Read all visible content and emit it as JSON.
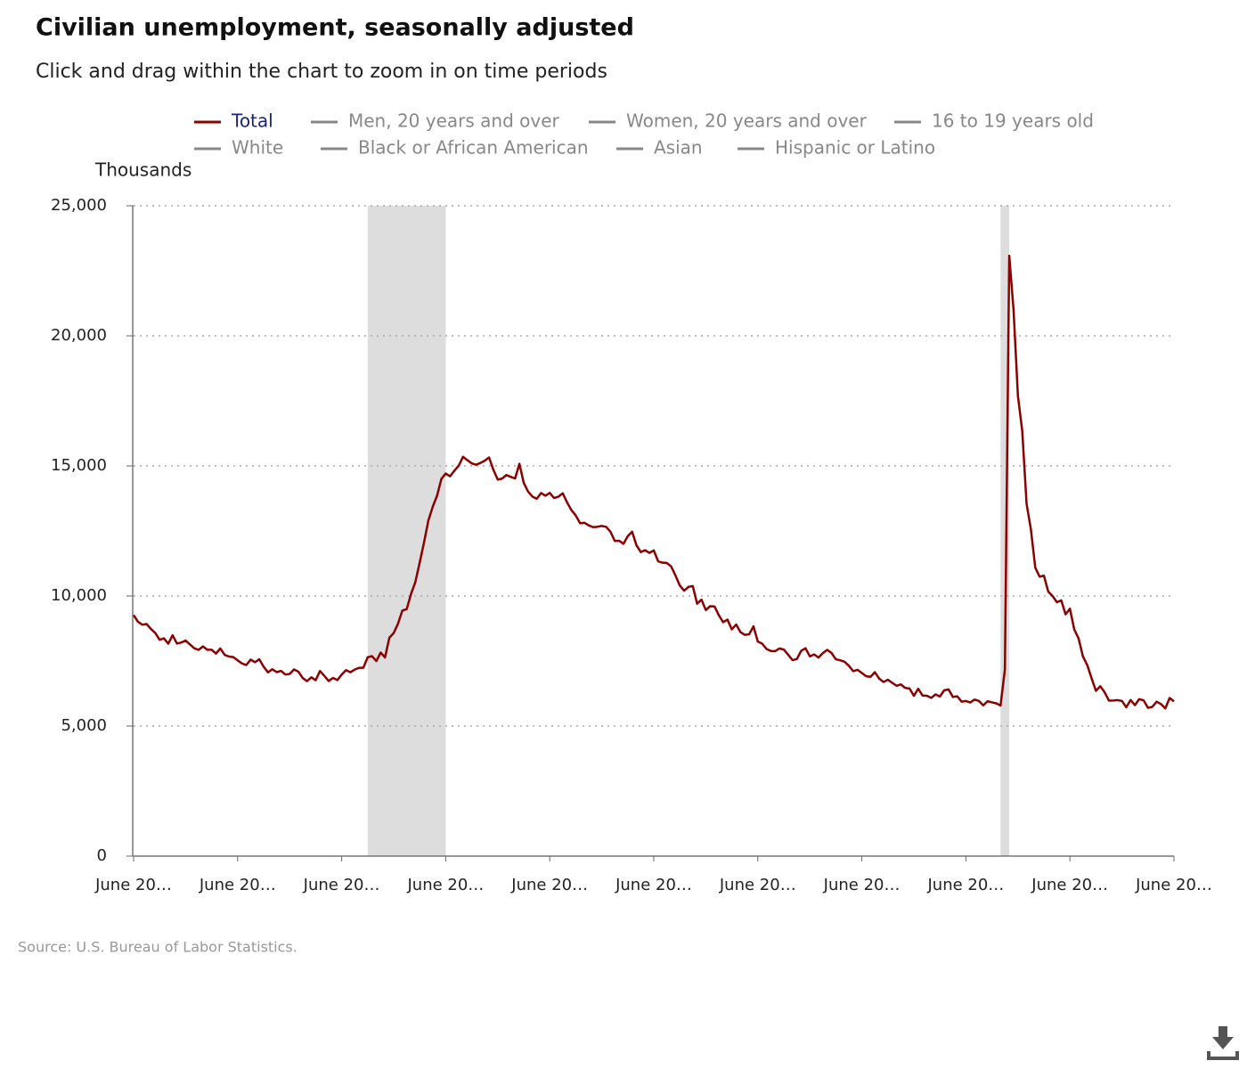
{
  "chart_data": {
    "type": "line",
    "title": "Civilian unemployment, seasonally adjusted",
    "subtitle": "Click and drag within the chart to zoom in on time periods",
    "y_axis_label": "Thousands",
    "source": "Source: U.S. Bureau of Labor Statistics.",
    "xlim": [
      0,
      240
    ],
    "xticks": [
      {
        "value": 0,
        "label": "June 20…"
      },
      {
        "value": 24,
        "label": "June 20…"
      },
      {
        "value": 48,
        "label": "June 20…"
      },
      {
        "value": 72,
        "label": "June 20…"
      },
      {
        "value": 96,
        "label": "June 20…"
      },
      {
        "value": 120,
        "label": "June 20…"
      },
      {
        "value": 144,
        "label": "June 20…"
      },
      {
        "value": 168,
        "label": "June 20…"
      },
      {
        "value": 192,
        "label": "June 20…"
      },
      {
        "value": 216,
        "label": "June 20…"
      },
      {
        "value": 240,
        "label": "June 20…"
      }
    ],
    "ylim": [
      0,
      25000
    ],
    "yticks": [
      0,
      {
        "value": 5000,
        "label": "5,000"
      },
      {
        "value": 10000,
        "label": "10,000"
      },
      {
        "value": 15000,
        "label": "15,000"
      },
      {
        "value": 20000,
        "label": "20,000"
      },
      {
        "value": 25000,
        "label": "25,000"
      }
    ],
    "grid": true,
    "shaded_periods": [
      [
        54,
        72
      ],
      [
        200,
        202
      ]
    ],
    "series": [
      {
        "name": "Total",
        "color": "#8b0000",
        "visible": true,
        "values": [
          9266,
          9011,
          8896,
          8921,
          8732,
          8576,
          8317,
          8370,
          8167,
          8491,
          8170,
          8212,
          8286,
          8136,
          7990,
          7927,
          8061,
          7932,
          7934,
          7784,
          7980,
          7737,
          7672,
          7651,
          7524,
          7406,
          7345,
          7553,
          7453,
          7566,
          7279,
          7064,
          7184,
          7072,
          7120,
          6980,
          7001,
          7175,
          7091,
          6847,
          6727,
          6872,
          6762,
          7116,
          6927,
          6731,
          6850,
          6766,
          6979,
          7149,
          7067,
          7170,
          7237,
          7240,
          7645,
          7685,
          7497,
          7822,
          7637,
          8395,
          8575,
          8937,
          9438,
          9494,
          10074,
          10538,
          11286,
          12058,
          12898,
          13426,
          13853,
          14499,
          14707,
          14601,
          14814,
          15009,
          15352,
          15219,
          15098,
          15046,
          15113,
          15202,
          15325,
          14849,
          14474,
          14512,
          14648,
          14579,
          14516,
          15081,
          14348,
          14013,
          13820,
          13737,
          13957,
          13855,
          13962,
          13763,
          13818,
          13948,
          13594,
          13302,
          13093,
          12797,
          12813,
          12713,
          12646,
          12660,
          12692,
          12656,
          12471,
          12115,
          12124,
          12005,
          12298,
          12471,
          11950,
          11689,
          11760,
          11654,
          11751,
          11335,
          11279,
          11270,
          11136,
          10787,
          10404,
          10202,
          10349,
          10380,
          9702,
          9859,
          9460,
          9608,
          9599,
          9262,
          8990,
          9090,
          8717,
          8903,
          8610,
          8504,
          8526,
          8834,
          8244,
          8167,
          7962,
          7886,
          7878,
          7984,
          7937,
          7742,
          7535,
          7575,
          7892,
          7991,
          7677,
          7752,
          7631,
          7804,
          7929,
          7809,
          7567,
          7528,
          7474,
          7319,
          7110,
          7160,
          7036,
          6913,
          6892,
          7069,
          6822,
          6693,
          6780,
          6661,
          6549,
          6600,
          6465,
          6442,
          6162,
          6434,
          6172,
          6164,
          6081,
          6216,
          6135,
          6375,
          6409,
          6116,
          6145,
          5938,
          5962,
          5906,
          6018,
          5965,
          5796,
          5955,
          5909,
          5874,
          5789,
          7178,
          23078,
          20988,
          17697,
          16346,
          13542,
          12559,
          11094,
          10740,
          10781,
          10167,
          9995,
          9761,
          9832,
          9295,
          9511,
          8708,
          8366,
          7678,
          7341,
          6834,
          6352,
          6530,
          6301,
          5977,
          5981,
          5996,
          5964,
          5722,
          6000,
          5804,
          6035,
          5988,
          5700,
          5737,
          5936,
          5846,
          5676,
          6079,
          5946
        ]
      },
      {
        "name": "Men, 20 years and over",
        "color": "#888888",
        "visible": false
      },
      {
        "name": "Women, 20 years and over",
        "color": "#888888",
        "visible": false
      },
      {
        "name": "16 to 19 years old",
        "color": "#888888",
        "visible": false
      },
      {
        "name": "White",
        "color": "#888888",
        "visible": false
      },
      {
        "name": "Black or African American",
        "color": "#888888",
        "visible": false
      },
      {
        "name": "Asian",
        "color": "#888888",
        "visible": false
      },
      {
        "name": "Hispanic or Latino",
        "color": "#888888",
        "visible": false
      }
    ]
  }
}
